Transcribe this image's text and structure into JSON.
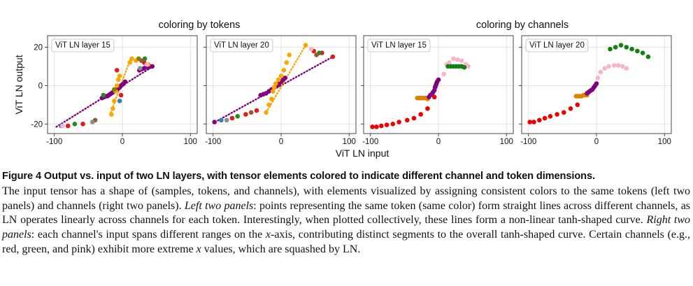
{
  "figure": {
    "group_titles": [
      "coloring by tokens",
      "coloring by channels"
    ],
    "shared_xlabel": "ViT LN input",
    "shared_ylabel": "ViT LN output"
  },
  "colors": {
    "purple": "#800080",
    "orange": "#ffa500",
    "red": "#e41a1c",
    "blue": "#377eb8",
    "green": "#228b22",
    "pink": "#f4b6c8",
    "brown": "#a0522d",
    "olive": "#808000",
    "grey": "#8c8c8c",
    "darkorange": "#e08000",
    "darkgreen": "#138013",
    "brightred": "#ee0000"
  },
  "chart_data": [
    {
      "type": "scatter",
      "title": "ViT LN layer 15",
      "group": "coloring by tokens",
      "xlabel": "",
      "ylabel": "ViT LN output",
      "xlim": [
        -110,
        110
      ],
      "ylim": [
        -25,
        26
      ],
      "xticks": [
        -100,
        0,
        100
      ],
      "yticks": [
        -20,
        0,
        20
      ],
      "tick_labels_x": [
        "-100",
        "0",
        "100"
      ],
      "tick_labels_y": [
        "-20",
        "0",
        "20"
      ],
      "grid": true,
      "series": [
        {
          "color": "purple",
          "style": "dotted-line",
          "x": [
            -97,
            45
          ],
          "y": [
            -21.5,
            10
          ]
        },
        {
          "color": "orange",
          "style": "dotted-line",
          "x": [
            -17,
            12
          ],
          "y": [
            -14,
            14
          ]
        },
        {
          "color": "purple",
          "style": "points",
          "x": [
            -30,
            -27,
            -24,
            -22,
            -20,
            -18,
            -16,
            -14,
            -12,
            -10,
            -8,
            -6,
            -4,
            -2,
            0,
            2,
            4,
            25,
            28,
            32,
            35,
            38,
            41,
            44
          ],
          "y": [
            -6.5,
            -6,
            -5.5,
            -5.5,
            -5,
            -4.5,
            -4,
            -3.5,
            -3,
            -2.5,
            -2,
            -1.5,
            -1,
            0,
            0.5,
            1,
            2,
            8,
            8.5,
            9,
            9.5,
            9.5,
            10,
            10
          ]
        },
        {
          "color": "orange",
          "style": "points",
          "x": [
            -16,
            -14,
            -12,
            -10,
            -8,
            -6,
            -4,
            11,
            14,
            20,
            38
          ],
          "y": [
            -15,
            -12,
            -8,
            -3,
            0,
            3,
            5,
            12,
            14,
            13,
            11
          ]
        },
        {
          "color": "red",
          "style": "points",
          "x": [
            -80,
            -58,
            -2,
            -8,
            32
          ],
          "y": [
            -21,
            -20,
            -5,
            8,
            12
          ]
        },
        {
          "color": "blue",
          "style": "points",
          "x": [
            -90,
            -4
          ],
          "y": [
            -21,
            -8
          ]
        },
        {
          "color": "green",
          "style": "points",
          "x": [
            -70,
            -28,
            33
          ],
          "y": [
            -20,
            -5,
            14
          ]
        },
        {
          "color": "pink",
          "style": "points",
          "x": [
            -88,
            36
          ],
          "y": [
            -21,
            11
          ]
        },
        {
          "color": "brown",
          "style": "points",
          "x": [
            -40,
            28
          ],
          "y": [
            -18,
            13
          ]
        },
        {
          "color": "grey",
          "style": "points",
          "x": [
            -44,
            26
          ],
          "y": [
            -19,
            9
          ]
        },
        {
          "color": "olive",
          "style": "points",
          "x": [
            24,
            -12
          ],
          "y": [
            14,
            -2
          ]
        }
      ]
    },
    {
      "type": "scatter",
      "title": "ViT LN layer 20",
      "group": "coloring by tokens",
      "xlabel": "",
      "ylabel": "",
      "xlim": [
        -110,
        110
      ],
      "ylim": [
        -25,
        26
      ],
      "xticks": [
        -100,
        0,
        100
      ],
      "yticks": [
        -20,
        0,
        20
      ],
      "tick_labels_x": [
        "-100",
        "0",
        "100"
      ],
      "tick_labels_y": [
        "-20",
        "0",
        "20"
      ],
      "grid": true,
      "series": [
        {
          "color": "purple",
          "style": "dotted-line",
          "x": [
            -97,
            76
          ],
          "y": [
            -19,
            15
          ]
        },
        {
          "color": "orange",
          "style": "dotted-line",
          "x": [
            -22,
            36
          ],
          "y": [
            -14,
            21
          ]
        },
        {
          "color": "purple",
          "style": "points",
          "x": [
            -98,
            -30,
            -26,
            -22,
            -18,
            -14,
            -10,
            -6,
            -3,
            0,
            3,
            6
          ],
          "y": [
            -19,
            -5,
            -4.5,
            -4,
            -3,
            -2,
            -1,
            0,
            1,
            2,
            3,
            4
          ]
        },
        {
          "color": "orange",
          "style": "points",
          "x": [
            -22,
            -18,
            -14,
            -12,
            -10,
            -8,
            -4,
            0,
            4,
            8,
            12,
            36
          ],
          "y": [
            -14,
            -10,
            -7,
            -3,
            -1,
            1,
            3,
            5,
            8,
            12,
            16,
            21
          ]
        },
        {
          "color": "red",
          "style": "points",
          "x": [
            -72,
            -52,
            -36,
            48,
            60,
            76
          ],
          "y": [
            -17,
            -15,
            -13,
            18,
            17,
            15
          ]
        },
        {
          "color": "blue",
          "style": "points",
          "x": [
            -88
          ],
          "y": [
            -18
          ]
        },
        {
          "color": "green",
          "style": "points",
          "x": [
            -64,
            56
          ],
          "y": [
            -16,
            17
          ]
        },
        {
          "color": "brown",
          "style": "points",
          "x": [
            -44,
            52
          ],
          "y": [
            -14,
            16
          ]
        },
        {
          "color": "pink",
          "style": "points",
          "x": [
            44
          ],
          "y": [
            19
          ]
        },
        {
          "color": "grey",
          "style": "points",
          "x": [
            -80
          ],
          "y": [
            -18
          ]
        }
      ]
    },
    {
      "type": "scatter",
      "title": "ViT LN layer 15",
      "group": "coloring by channels",
      "xlabel": "",
      "ylabel": "",
      "xlim": [
        -110,
        110
      ],
      "ylim": [
        -25,
        26
      ],
      "xticks": [
        -100,
        0,
        100
      ],
      "yticks": [
        -20,
        0,
        20
      ],
      "tick_labels_x": [
        "-100",
        "0",
        "100"
      ],
      "tick_labels_y": [
        "-20",
        "0",
        "20"
      ],
      "grid": true,
      "series": [
        {
          "color": "brightred",
          "style": "points",
          "x": [
            -97,
            -91,
            -84,
            -76,
            -67,
            -58,
            -46,
            -36,
            -26,
            -16,
            -6
          ],
          "y": [
            -21.5,
            -21.5,
            -21,
            -20.5,
            -20,
            -19,
            -18,
            -17,
            -15,
            -12,
            -6
          ]
        },
        {
          "color": "darkorange",
          "style": "points",
          "x": [
            -31,
            -28,
            -25,
            -22,
            -19,
            -16
          ],
          "y": [
            -6.5,
            -6.5,
            -6.5,
            -6.5,
            -6.5,
            -7
          ]
        },
        {
          "color": "purple",
          "style": "points",
          "x": [
            -14,
            -12,
            -10,
            -8,
            -6,
            -5,
            -4,
            -3,
            -2,
            0
          ],
          "y": [
            -6,
            -5,
            -4.5,
            -3.5,
            -2.5,
            -1,
            0,
            1,
            2,
            3
          ]
        },
        {
          "color": "pink",
          "style": "points",
          "x": [
            8,
            12,
            16,
            22,
            28,
            34,
            40,
            44
          ],
          "y": [
            6,
            11,
            12,
            14,
            13.5,
            13,
            11,
            10
          ]
        },
        {
          "color": "darkgreen",
          "style": "points",
          "x": [
            14,
            18,
            22,
            26,
            30,
            34,
            38
          ],
          "y": [
            10,
            10,
            10,
            10,
            10,
            10,
            9.5
          ]
        }
      ]
    },
    {
      "type": "scatter",
      "title": "ViT LN layer 20",
      "group": "coloring by channels",
      "xlabel": "",
      "ylabel": "",
      "xlim": [
        -110,
        110
      ],
      "ylim": [
        -25,
        26
      ],
      "xticks": [
        -100,
        0,
        100
      ],
      "yticks": [
        -20,
        0,
        20
      ],
      "tick_labels_x": [
        "-100",
        "0",
        "100"
      ],
      "tick_labels_y": [
        "-20",
        "0",
        "20"
      ],
      "grid": true,
      "series": [
        {
          "color": "brightred",
          "style": "points",
          "x": [
            -98,
            -92,
            -84,
            -76,
            -68,
            -58,
            -48,
            -38,
            -28
          ],
          "y": [
            -19,
            -19,
            -18,
            -17,
            -16,
            -15,
            -14,
            -12,
            -10
          ]
        },
        {
          "color": "darkorange",
          "style": "points",
          "x": [
            -30,
            -28,
            -25,
            -22,
            -19,
            -16,
            -14
          ],
          "y": [
            -5.5,
            -5.5,
            -5.5,
            -5.5,
            -5,
            -5,
            -5
          ]
        },
        {
          "color": "purple",
          "style": "points",
          "x": [
            -14,
            -12,
            -10,
            -8,
            -6,
            -4,
            -2,
            0
          ],
          "y": [
            -4,
            -3.5,
            -3,
            -2.5,
            -2,
            -1,
            0,
            1
          ]
        },
        {
          "color": "pink",
          "style": "points",
          "x": [
            2,
            6,
            12,
            18,
            26,
            32,
            38,
            44
          ],
          "y": [
            4,
            7,
            9,
            10,
            10.5,
            10.5,
            10,
            9
          ]
        },
        {
          "color": "darkgreen",
          "style": "points",
          "x": [
            20,
            28,
            36,
            44,
            52,
            60,
            68,
            76
          ],
          "y": [
            19,
            20,
            21,
            20,
            19,
            18,
            17,
            15
          ]
        }
      ]
    }
  ],
  "caption": {
    "title": "Figure 4  Output vs. input of two LN layers, with tensor elements colored to indicate different channel and token dimensions.",
    "part1": "The input tensor has a shape of (samples, tokens, and channels), with elements visualized by assigning consistent colors to the same tokens (left two panels) and channels (right two panels). ",
    "left_label": "Left two panels",
    "part2": ": points representing the same token (same color) form straight lines across different channels, as LN operates linearly across channels for each token. Interestingly, when plotted collectively, these lines form a non-linear tanh-shaped curve. ",
    "right_label": "Right two panels",
    "part3": ": each channel's input spans different ranges on the ",
    "x_axis_var": "x",
    "part4": "-axis, contributing distinct segments to the overall tanh-shaped curve. Certain channels (e.g., red, green, and pink) exhibit more extreme ",
    "x_var": "x",
    "part5": " values, which are squashed by LN."
  }
}
